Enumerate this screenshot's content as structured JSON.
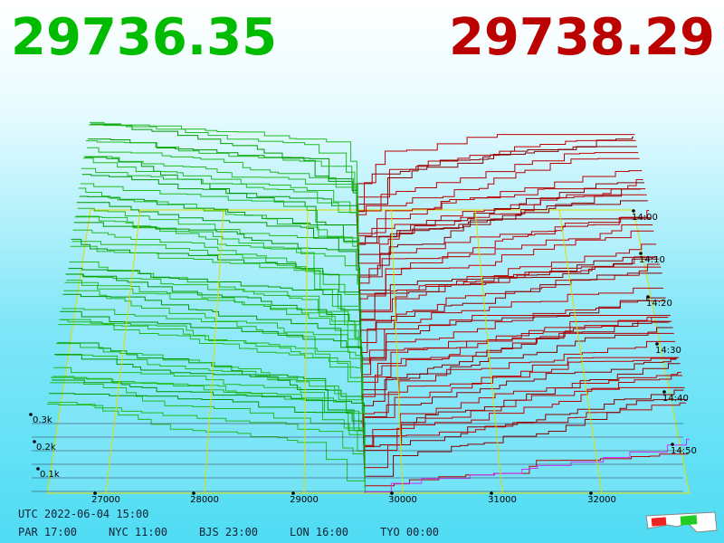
{
  "prices": {
    "bid": "29736.35",
    "ask": "29738.29"
  },
  "price_axis": {
    "labels": [
      "27000",
      "28000",
      "29000",
      "30000",
      "31000",
      "32000"
    ]
  },
  "volume_axis": {
    "labels": [
      "0.3k",
      "0.2k",
      "0.1k"
    ]
  },
  "time_axis": {
    "labels": [
      "14:00",
      "14:10",
      "14:20",
      "14:30",
      "14:40",
      "14:50"
    ]
  },
  "clock": {
    "utc": "UTC 2022-06-04 15:00",
    "cities": [
      "PAR 17:00",
      "NYC 11:00",
      "BJS 23:00",
      "LON 16:00",
      "TYO 00:00"
    ]
  }
}
